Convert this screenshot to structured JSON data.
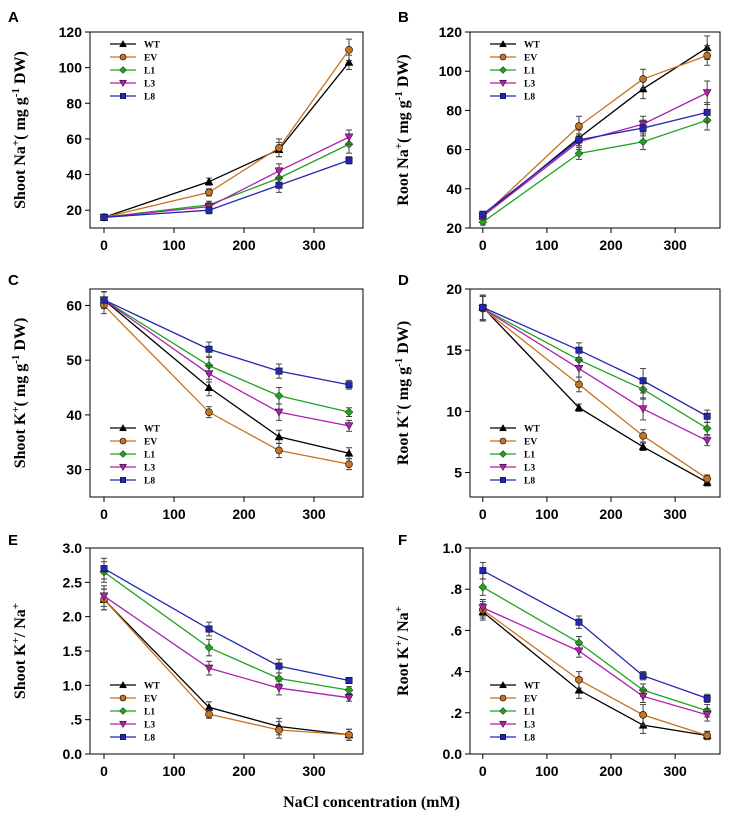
{
  "figure": {
    "xlabel": "NaCl concentration (mM)"
  },
  "series_style": [
    {
      "name": "WT",
      "color": "#000000",
      "marker": "triangle-up"
    },
    {
      "name": "EV",
      "color": "#C8731E",
      "marker": "circle"
    },
    {
      "name": "L1",
      "color": "#21A321",
      "marker": "diamond"
    },
    {
      "name": "L3",
      "color": "#B11FB1",
      "marker": "triangle-down"
    },
    {
      "name": "L8",
      "color": "#2426B4",
      "marker": "square"
    }
  ],
  "chart_data": [
    {
      "type": "line",
      "panel": "A",
      "ylabel_html": "Shoot Na<sup>+</sup>( mg g<sup>-1</sup> DW)",
      "x": [
        0,
        150,
        250,
        350
      ],
      "xticks": [
        0,
        100,
        200,
        300
      ],
      "xlim": [
        -20,
        370
      ],
      "ylim": [
        10,
        120
      ],
      "yticks": [
        20,
        40,
        60,
        80,
        100,
        120
      ],
      "ytick_labels": [
        "20",
        "40",
        "60",
        "80",
        "100",
        "120"
      ],
      "legend": "top-left",
      "series": [
        {
          "name": "WT",
          "values": [
            16,
            36,
            54,
            103
          ],
          "err": [
            1,
            2,
            4,
            4
          ]
        },
        {
          "name": "EV",
          "values": [
            16,
            30,
            55,
            110
          ],
          "err": [
            1,
            2,
            5,
            6
          ]
        },
        {
          "name": "L1",
          "values": [
            16,
            23,
            38,
            57
          ],
          "err": [
            1,
            2,
            4,
            5
          ]
        },
        {
          "name": "L3",
          "values": [
            16,
            22,
            42,
            61
          ],
          "err": [
            1,
            2,
            4,
            4
          ]
        },
        {
          "name": "L8",
          "values": [
            16,
            20,
            34,
            48
          ],
          "err": [
            1,
            2,
            4,
            2
          ]
        }
      ]
    },
    {
      "type": "line",
      "panel": "B",
      "ylabel_html": "Root Na<sup>+</sup>( mg g<sup>-1</sup> DW)",
      "x": [
        0,
        150,
        250,
        350
      ],
      "xticks": [
        0,
        100,
        200,
        300
      ],
      "xlim": [
        -20,
        370
      ],
      "ylim": [
        20,
        120
      ],
      "yticks": [
        20,
        40,
        60,
        80,
        100,
        120
      ],
      "ytick_labels": [
        "20",
        "40",
        "60",
        "80",
        "100",
        "120"
      ],
      "legend": "top-left",
      "series": [
        {
          "name": "WT",
          "values": [
            26,
            66,
            91,
            112
          ],
          "err": [
            1.5,
            4,
            5,
            6
          ]
        },
        {
          "name": "EV",
          "values": [
            26,
            72,
            96,
            108
          ],
          "err": [
            1.5,
            5,
            5,
            5
          ]
        },
        {
          "name": "L1",
          "values": [
            23,
            58,
            64,
            75
          ],
          "err": [
            1.5,
            3,
            4,
            5
          ]
        },
        {
          "name": "L3",
          "values": [
            26,
            64,
            73,
            89
          ],
          "err": [
            1.5,
            4,
            4,
            6
          ]
        },
        {
          "name": "L8",
          "values": [
            27,
            65,
            71,
            79
          ],
          "err": [
            1.5,
            3,
            4,
            5
          ]
        }
      ]
    },
    {
      "type": "line",
      "panel": "C",
      "ylabel_html": "Shoot K<sup>+</sup>( mg g<sup>-1</sup> DW)",
      "x": [
        0,
        150,
        250,
        350
      ],
      "xticks": [
        0,
        100,
        200,
        300
      ],
      "xlim": [
        -20,
        370
      ],
      "ylim": [
        25,
        63
      ],
      "yticks": [
        30,
        40,
        50,
        60
      ],
      "ytick_labels": [
        "30",
        "40",
        "50",
        "60"
      ],
      "legend": "bottom-left",
      "series": [
        {
          "name": "WT",
          "values": [
            61,
            45,
            36,
            33
          ],
          "err": [
            1.5,
            1.5,
            1.2,
            1
          ]
        },
        {
          "name": "EV",
          "values": [
            60,
            40.5,
            33.5,
            31
          ],
          "err": [
            1.5,
            1,
            1.3,
            1
          ]
        },
        {
          "name": "L1",
          "values": [
            61,
            49,
            43.5,
            40.5
          ],
          "err": [
            1.5,
            1.5,
            1.5,
            0.8
          ]
        },
        {
          "name": "L3",
          "values": [
            61,
            47.5,
            40.5,
            38
          ],
          "err": [
            1.5,
            1.5,
            1.5,
            1
          ]
        },
        {
          "name": "L8",
          "values": [
            61,
            52,
            48,
            45.5
          ],
          "err": [
            1.5,
            1.3,
            1.3,
            0.8
          ]
        }
      ]
    },
    {
      "type": "line",
      "panel": "D",
      "ylabel_html": "Root K<sup>+</sup>( mg g<sup>-1</sup> DW)",
      "x": [
        0,
        150,
        250,
        350
      ],
      "xticks": [
        0,
        100,
        200,
        300
      ],
      "xlim": [
        -20,
        370
      ],
      "ylim": [
        3,
        20
      ],
      "yticks": [
        5,
        10,
        15,
        20
      ],
      "ytick_labels": [
        "5",
        "10",
        "15",
        "20"
      ],
      "legend": "bottom-left",
      "series": [
        {
          "name": "WT",
          "values": [
            18.5,
            10.3,
            7.1,
            4.2
          ],
          "err": [
            1,
            0.3,
            0.3,
            0.3
          ]
        },
        {
          "name": "EV",
          "values": [
            18.4,
            12.2,
            8.0,
            4.5
          ],
          "err": [
            1,
            0.6,
            0.5,
            0.3
          ]
        },
        {
          "name": "L1",
          "values": [
            18.4,
            14.2,
            11.8,
            8.6
          ],
          "err": [
            1,
            0.6,
            0.8,
            0.5
          ]
        },
        {
          "name": "L3",
          "values": [
            18.4,
            13.5,
            10.2,
            7.6
          ],
          "err": [
            1,
            0.7,
            0.9,
            0.4
          ]
        },
        {
          "name": "L8",
          "values": [
            18.5,
            15.0,
            12.5,
            9.6
          ],
          "err": [
            1,
            0.6,
            1.0,
            0.5
          ]
        }
      ]
    },
    {
      "type": "line",
      "panel": "E",
      "ylabel_html": "Shoot K<sup>+</sup>/ Na<sup>+</sup>",
      "x": [
        0,
        150,
        250,
        350
      ],
      "xticks": [
        0,
        100,
        200,
        300
      ],
      "xlim": [
        -20,
        370
      ],
      "ylim": [
        0,
        3.0
      ],
      "yticks": [
        0,
        0.5,
        1.0,
        1.5,
        2.0,
        2.5,
        3.0
      ],
      "ytick_labels": [
        "0.0",
        ".5",
        "1.0",
        "1.5",
        "2.0",
        "2.5",
        "3.0"
      ],
      "legend": "bottom-left",
      "series": [
        {
          "name": "WT",
          "values": [
            2.25,
            0.68,
            0.4,
            0.28
          ],
          "err": [
            0.15,
            0.08,
            0.12,
            0.08
          ]
        },
        {
          "name": "EV",
          "values": [
            2.25,
            0.58,
            0.35,
            0.28
          ],
          "err": [
            0.15,
            0.06,
            0.12,
            0.08
          ]
        },
        {
          "name": "L1",
          "values": [
            2.65,
            1.55,
            1.1,
            0.93
          ],
          "err": [
            0.15,
            0.12,
            0.08,
            0.05
          ]
        },
        {
          "name": "L3",
          "values": [
            2.3,
            1.25,
            0.96,
            0.82
          ],
          "err": [
            0.15,
            0.1,
            0.1,
            0.05
          ]
        },
        {
          "name": "L8",
          "values": [
            2.7,
            1.82,
            1.28,
            1.07
          ],
          "err": [
            0.15,
            0.1,
            0.1,
            0.04
          ]
        }
      ]
    },
    {
      "type": "line",
      "panel": "F",
      "ylabel_html": "Root K<sup>+</sup>/ Na<sup>+</sup>",
      "x": [
        0,
        150,
        250,
        350
      ],
      "xticks": [
        0,
        100,
        200,
        300
      ],
      "xlim": [
        -20,
        370
      ],
      "ylim": [
        0,
        1.0
      ],
      "yticks": [
        0,
        0.2,
        0.4,
        0.6,
        0.8,
        1.0
      ],
      "ytick_labels": [
        "0.0",
        ".2",
        ".4",
        ".6",
        ".8",
        "1.0"
      ],
      "legend": "bottom-left",
      "series": [
        {
          "name": "WT",
          "values": [
            0.69,
            0.31,
            0.14,
            0.09
          ],
          "err": [
            0.04,
            0.04,
            0.04,
            0.02
          ]
        },
        {
          "name": "EV",
          "values": [
            0.7,
            0.36,
            0.19,
            0.09
          ],
          "err": [
            0.04,
            0.04,
            0.05,
            0.02
          ]
        },
        {
          "name": "L1",
          "values": [
            0.81,
            0.54,
            0.31,
            0.21
          ],
          "err": [
            0.04,
            0.03,
            0.03,
            0.03
          ]
        },
        {
          "name": "L3",
          "values": [
            0.71,
            0.5,
            0.28,
            0.19
          ],
          "err": [
            0.04,
            0.03,
            0.03,
            0.03
          ]
        },
        {
          "name": "L8",
          "values": [
            0.89,
            0.64,
            0.38,
            0.27
          ],
          "err": [
            0.04,
            0.03,
            0.02,
            0.02
          ]
        }
      ]
    }
  ]
}
